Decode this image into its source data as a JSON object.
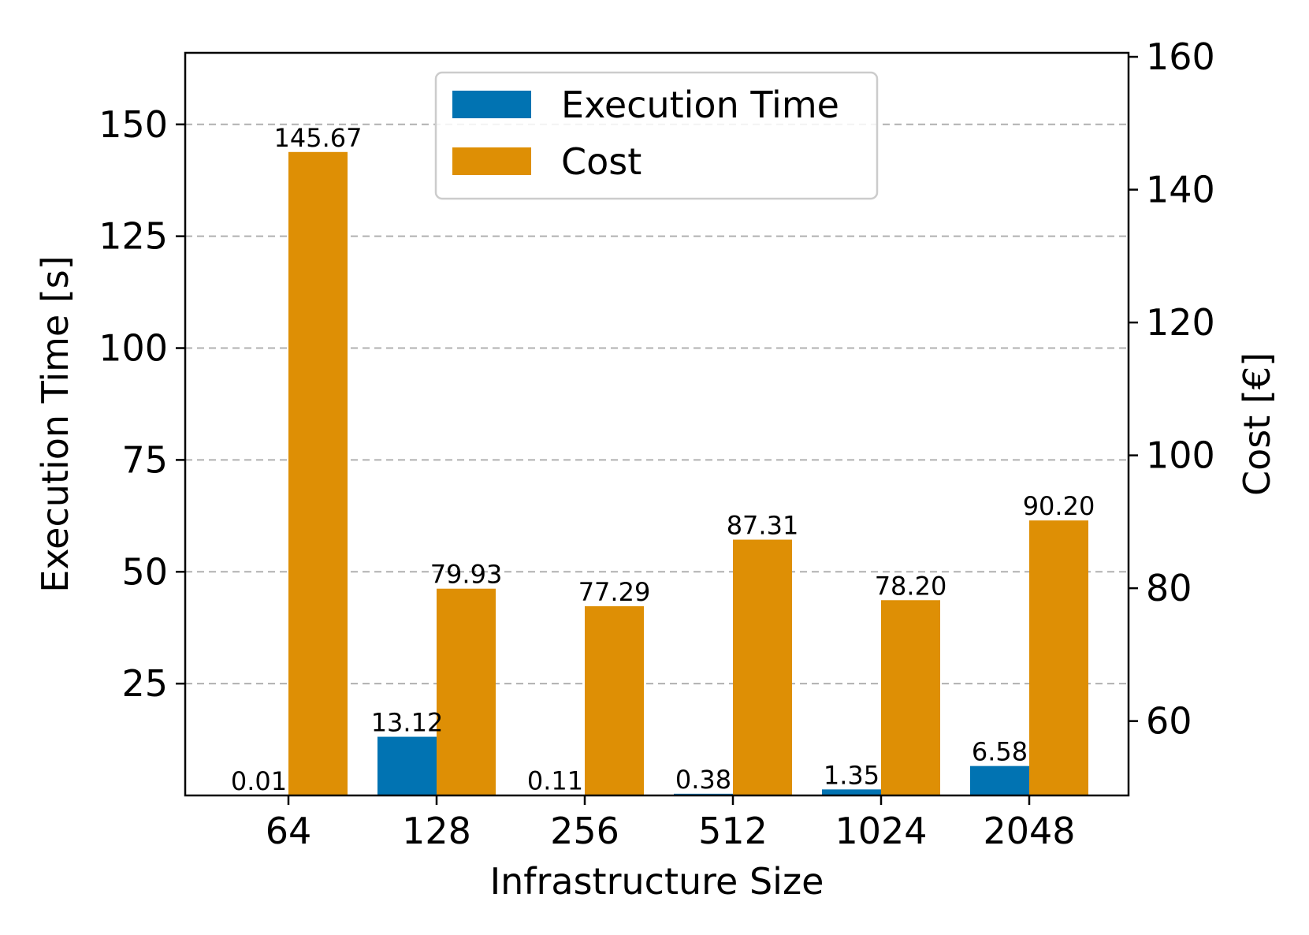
{
  "chart_data": {
    "type": "bar",
    "xlabel": "Infrastructure Size",
    "categories": [
      "64",
      "128",
      "256",
      "512",
      "1024",
      "2048"
    ],
    "series": [
      {
        "name": "Execution Time",
        "axis": "left",
        "color": "#0173b2",
        "values": [
          0.01,
          13.12,
          0.11,
          0.38,
          1.35,
          6.58
        ],
        "labels": [
          "0.01",
          "13.12",
          "0.11",
          "0.38",
          "1.35",
          "6.58"
        ]
      },
      {
        "name": "Cost",
        "axis": "right",
        "color": "#de8f05",
        "values": [
          145.67,
          79.93,
          77.29,
          87.31,
          78.2,
          90.2
        ],
        "labels": [
          "145.67",
          "79.93",
          "77.29",
          "87.31",
          "78.20",
          "90.20"
        ]
      }
    ],
    "y_left": {
      "label": "Execution Time [s]",
      "lim": [
        0,
        166
      ],
      "ticks": [
        25,
        50,
        75,
        100,
        125,
        150
      ]
    },
    "y_right": {
      "label": "Cost [€]",
      "lim": [
        48.8,
        160.6
      ],
      "ticks": [
        60,
        80,
        100,
        120,
        140,
        160
      ]
    },
    "grid": "horizontal-dashed",
    "legend": {
      "position": "top-center",
      "entries": [
        "Execution Time",
        "Cost"
      ]
    }
  }
}
